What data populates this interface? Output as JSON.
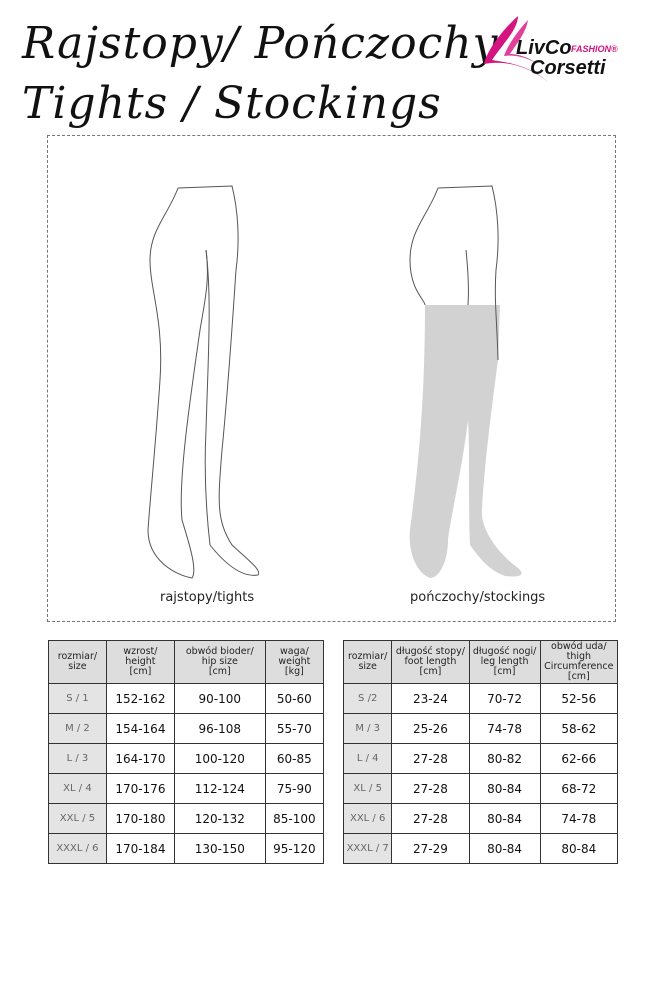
{
  "title": {
    "line1": "Rajstopy/ Pończochy",
    "line2": "Tights / Stockings"
  },
  "logo": {
    "brand1": "LivCo",
    "brand2": "FASHION®",
    "brand3": "Corsetti",
    "color": "#d4147f"
  },
  "figures": {
    "tights_caption": "rajstopy/tights",
    "stockings_caption": "pończochy/stockings",
    "stocking_color": "#d2d2d2"
  },
  "tights_table": {
    "headers": [
      "rozmiar/\nsize",
      "wzrost/\nheight\n[cm]",
      "obwód bioder/\nhip size\n[cm]",
      "waga/\nweight\n[kg]"
    ],
    "rows": [
      [
        "S / 1",
        "152-162",
        "90-100",
        "50-60"
      ],
      [
        "M / 2",
        "154-164",
        "96-108",
        "55-70"
      ],
      [
        "L / 3",
        "164-170",
        "100-120",
        "60-85"
      ],
      [
        "XL / 4",
        "170-176",
        "112-124",
        "75-90"
      ],
      [
        "XXL / 5",
        "170-180",
        "120-132",
        "85-100"
      ],
      [
        "XXXL / 6",
        "170-184",
        "130-150",
        "95-120"
      ]
    ]
  },
  "stockings_table": {
    "headers": [
      "rozmiar/\nsize",
      "długość stopy/\nfoot length\n[cm]",
      "długość nogi/\nleg length\n[cm]",
      "obwód uda/\nthigh\nCircumference\n[cm]"
    ],
    "rows": [
      [
        "S /2",
        "23-24",
        "70-72",
        "52-56"
      ],
      [
        "M / 3",
        "25-26",
        "74-78",
        "58-62"
      ],
      [
        "L / 4",
        "27-28",
        "80-82",
        "62-66"
      ],
      [
        "XL / 5",
        "27-28",
        "80-84",
        "68-72"
      ],
      [
        "XXL / 6",
        "27-28",
        "80-84",
        "74-78"
      ],
      [
        "XXXL / 7",
        "27-29",
        "80-84",
        "80-84"
      ]
    ]
  }
}
